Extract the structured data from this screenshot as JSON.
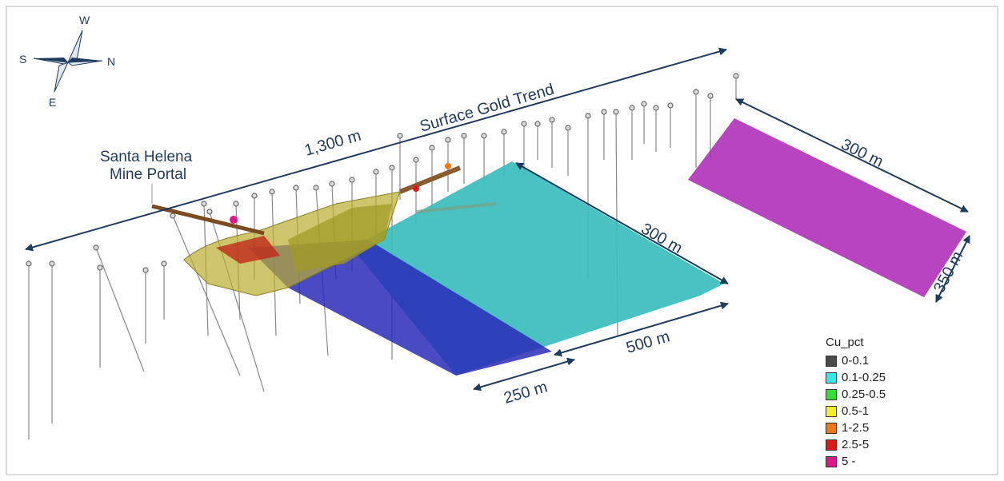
{
  "compass": {
    "W": "W",
    "S": "S",
    "N": "N",
    "E": "E"
  },
  "labels": {
    "surface_trend": "Surface Gold Trend",
    "portal_line1": "Santa Helena",
    "portal_line2": "Mine Portal",
    "trend_length": "1,300 m",
    "cyan_length": "300 m",
    "cyan_width": "500 m",
    "blue_width": "250 m",
    "magenta_length": "300 m",
    "magenta_width": "350 m"
  },
  "colors": {
    "dim_arrow": "#1f3b5e",
    "cyan_block": "#3bbdbd",
    "blue_block": "#2a2ab8",
    "magenta_block": "#b030b8",
    "shell": "#b9ad2e"
  },
  "legend": {
    "title": "Cu_pct",
    "items": [
      {
        "label": "0-0.1",
        "color": "#4a4a4a"
      },
      {
        "label": "0.1-0.25",
        "color": "#33e6f0"
      },
      {
        "label": "0.25-0.5",
        "color": "#33dd33"
      },
      {
        "label": "0.5-1",
        "color": "#f5f020"
      },
      {
        "label": "1-2.5",
        "color": "#f07a10"
      },
      {
        "label": "2.5-5",
        "color": "#e01818"
      },
      {
        "label": "5 -",
        "color": "#e0168c"
      }
    ]
  }
}
